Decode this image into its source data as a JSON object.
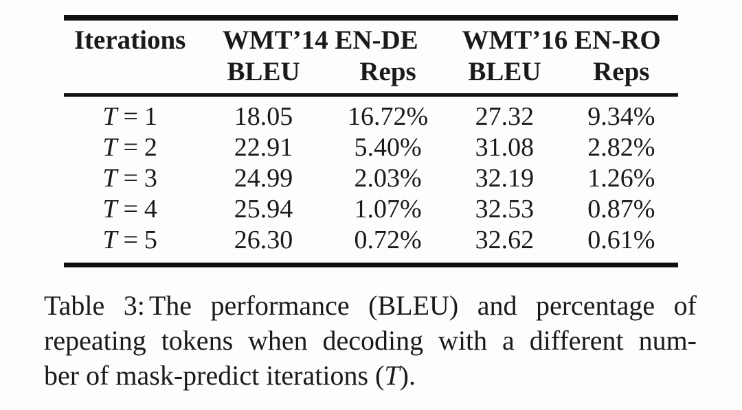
{
  "table": {
    "header": {
      "iterations": "Iterations",
      "group1": "WMT’14 EN-DE",
      "group2": "WMT’16 EN-RO",
      "sub1_bleu": "BLEU",
      "sub1_reps": "Reps",
      "sub2_bleu": "BLEU",
      "sub2_reps": "Reps"
    },
    "rows": [
      {
        "var": "T",
        "eq": "=",
        "val": "1",
        "ende_bleu": "18.05",
        "ende_reps": "16.72%",
        "enro_bleu": "27.32",
        "enro_reps": "9.34%"
      },
      {
        "var": "T",
        "eq": "=",
        "val": "2",
        "ende_bleu": "22.91",
        "ende_reps": "5.40%",
        "enro_bleu": "31.08",
        "enro_reps": "2.82%"
      },
      {
        "var": "T",
        "eq": "=",
        "val": "3",
        "ende_bleu": "24.99",
        "ende_reps": "2.03%",
        "enro_bleu": "32.19",
        "enro_reps": "1.26%"
      },
      {
        "var": "T",
        "eq": "=",
        "val": "4",
        "ende_bleu": "25.94",
        "ende_reps": "1.07%",
        "enro_bleu": "32.53",
        "enro_reps": "0.87%"
      },
      {
        "var": "T",
        "eq": "=",
        "val": "5",
        "ende_bleu": "26.30",
        "ende_reps": "0.72%",
        "enro_bleu": "32.62",
        "enro_reps": "0.61%"
      }
    ]
  },
  "caption": {
    "label": "Table 3:",
    "line1_rest": "The performance (BLEU) and percentage of",
    "line2": "repeating tokens when decoding with a different num-",
    "line3_prefix": "ber of mask-predict iterations (",
    "variable": "T",
    "line3_suffix": ")."
  },
  "colors": {
    "text": "#1a1a1a",
    "rule": "#101010",
    "background": "#fdfdfb"
  }
}
